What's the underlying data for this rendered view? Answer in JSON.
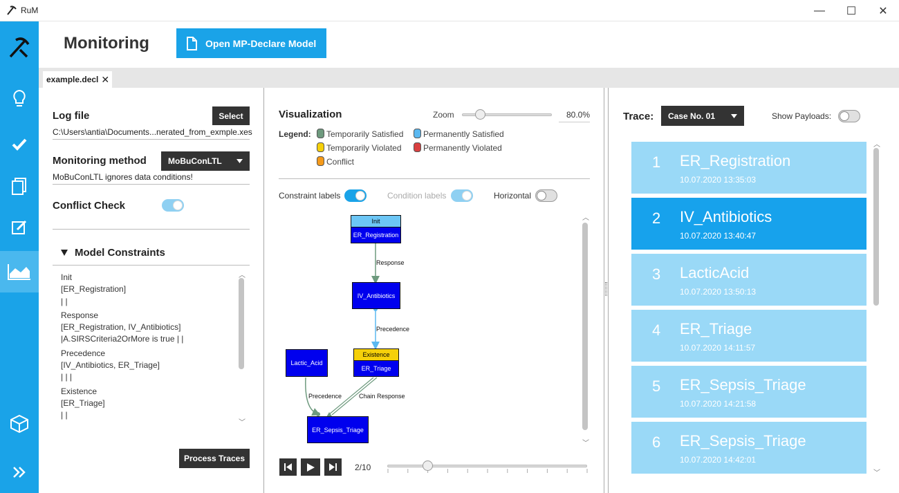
{
  "window": {
    "title": "RuM",
    "minimize": "—",
    "maximize": "☐",
    "close": "✕"
  },
  "sidebar": {
    "items": [
      {
        "name": "logo-icon"
      },
      {
        "name": "lightbulb-icon"
      },
      {
        "name": "checkmark-icon"
      },
      {
        "name": "copy-icon"
      },
      {
        "name": "edit-icon"
      },
      {
        "name": "area-chart-icon",
        "active": true
      },
      {
        "name": "cube-icon"
      },
      {
        "name": "double-chevron-right-icon"
      }
    ]
  },
  "header": {
    "title": "Monitoring",
    "open_button": "Open MP-Declare Model"
  },
  "tab": {
    "label": "example.decl",
    "close": "✕"
  },
  "left": {
    "log_file_label": "Log file",
    "select_button": "Select",
    "log_file_path": "C:\\Users\\antia\\Documents...nerated_from_exmple.xes",
    "monitoring_method_label": "Monitoring method",
    "monitoring_method_value": "MoBuConLTL",
    "monitoring_note": "MoBuConLTL ignores data conditions!",
    "conflict_check_label": "Conflict Check",
    "model_constraints_label": "Model Constraints",
    "constraints": [
      "Init",
      "[ER_Registration]",
      "| |",
      "Response",
      "[ER_Registration, IV_Antibiotics]",
      "|A.SIRSCriteria2OrMore is true | |",
      "Precedence",
      "[IV_Antibiotics, ER_Triage]",
      "| | |",
      "Existence",
      "[ER_Triage]",
      "| |"
    ],
    "process_button": "Process Traces"
  },
  "viz": {
    "title": "Visualization",
    "zoom_label": "Zoom",
    "zoom_value": "80.0%",
    "zoom_fraction": 0.2,
    "legend_label": "Legend:",
    "legend": [
      {
        "label": "Temporarily Satisfied",
        "color": "#6e9a7e"
      },
      {
        "label": "Permanently Satisfied",
        "color": "#5bb8f0"
      },
      {
        "label": "Temporarily Violated",
        "color": "#f5d00a"
      },
      {
        "label": "Permanently Violated",
        "color": "#d94040"
      },
      {
        "label": "Conflict",
        "color": "#f59a1a"
      }
    ],
    "constraint_labels": "Constraint labels",
    "condition_labels": "Condition labels",
    "horizontal": "Horizontal",
    "graph": {
      "nodes": {
        "init_header": "Init",
        "er_registration": "ER_Registration",
        "iv_antibiotics": "IV_Antibiotics",
        "existence_header": "Existence",
        "er_triage": "ER_Triage",
        "lactic_acid": "Lactic_Acid",
        "er_sepsis_triage": "ER_Sepsis_Triage"
      },
      "edges": {
        "response": "Response",
        "precedence1": "Precedence",
        "precedence2": "Precedence",
        "chain_response": "Chain Response"
      }
    },
    "step": "2/10",
    "step_fraction": 0.2
  },
  "trace": {
    "label": "Trace:",
    "selected": "Case No. 01",
    "show_payloads": "Show Payloads:",
    "items": [
      {
        "idx": "1",
        "name": "ER_Registration",
        "time": "10.07.2020 13:35:03"
      },
      {
        "idx": "2",
        "name": "IV_Antibiotics",
        "time": "10.07.2020 13:40:47",
        "selected": true
      },
      {
        "idx": "3",
        "name": "LacticAcid",
        "time": "10.07.2020 13:50:13"
      },
      {
        "idx": "4",
        "name": "ER_Triage",
        "time": "10.07.2020 14:11:57"
      },
      {
        "idx": "5",
        "name": "ER_Sepsis_Triage",
        "time": "10.07.2020 14:21:58"
      },
      {
        "idx": "6",
        "name": "ER_Sepsis_Triage",
        "time": "10.07.2020 14:42:01"
      }
    ]
  }
}
